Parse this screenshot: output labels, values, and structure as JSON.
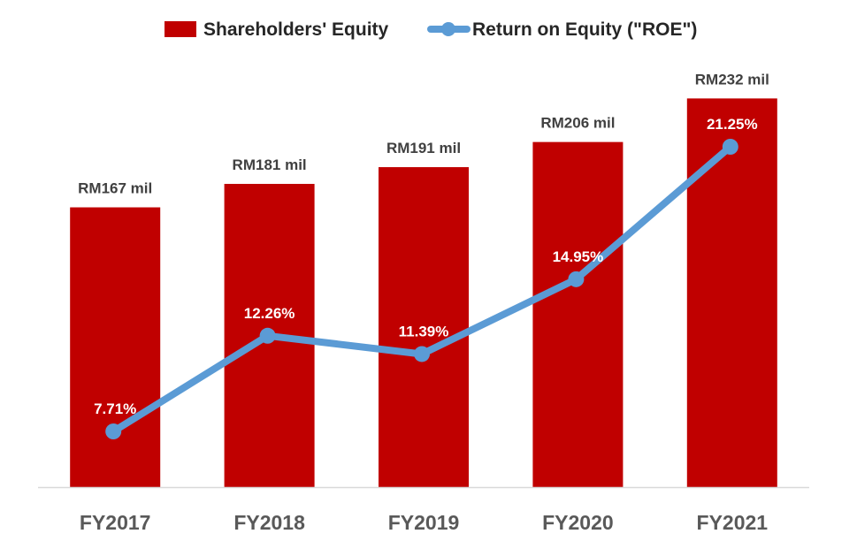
{
  "chart_data": {
    "type": "bar",
    "categories": [
      "FY2017",
      "FY2018",
      "FY2019",
      "FY2020",
      "FY2021"
    ],
    "series": [
      {
        "name": "Shareholders' Equity",
        "type": "bar",
        "values": [
          167,
          181,
          191,
          206,
          232
        ],
        "labels": [
          "RM167 mil",
          "RM181 mil",
          "RM191 mil",
          "RM206 mil",
          "RM232 mil"
        ]
      },
      {
        "name": "Return on Equity (\"ROE\")",
        "type": "line",
        "values": [
          7.71,
          12.26,
          11.39,
          14.95,
          21.25
        ],
        "labels": [
          "7.71%",
          "12.26%",
          "11.39%",
          "14.95%",
          "21.25%"
        ]
      }
    ],
    "title": "",
    "xlabel": "",
    "ylabel": "",
    "ylim": [
      0,
      250
    ],
    "y2lim": [
      0,
      30
    ],
    "grid": false,
    "legend": "top-center",
    "colors": {
      "bar": "#c00000",
      "line": "#5b9bd5",
      "axis": "#d9d9d9"
    }
  }
}
